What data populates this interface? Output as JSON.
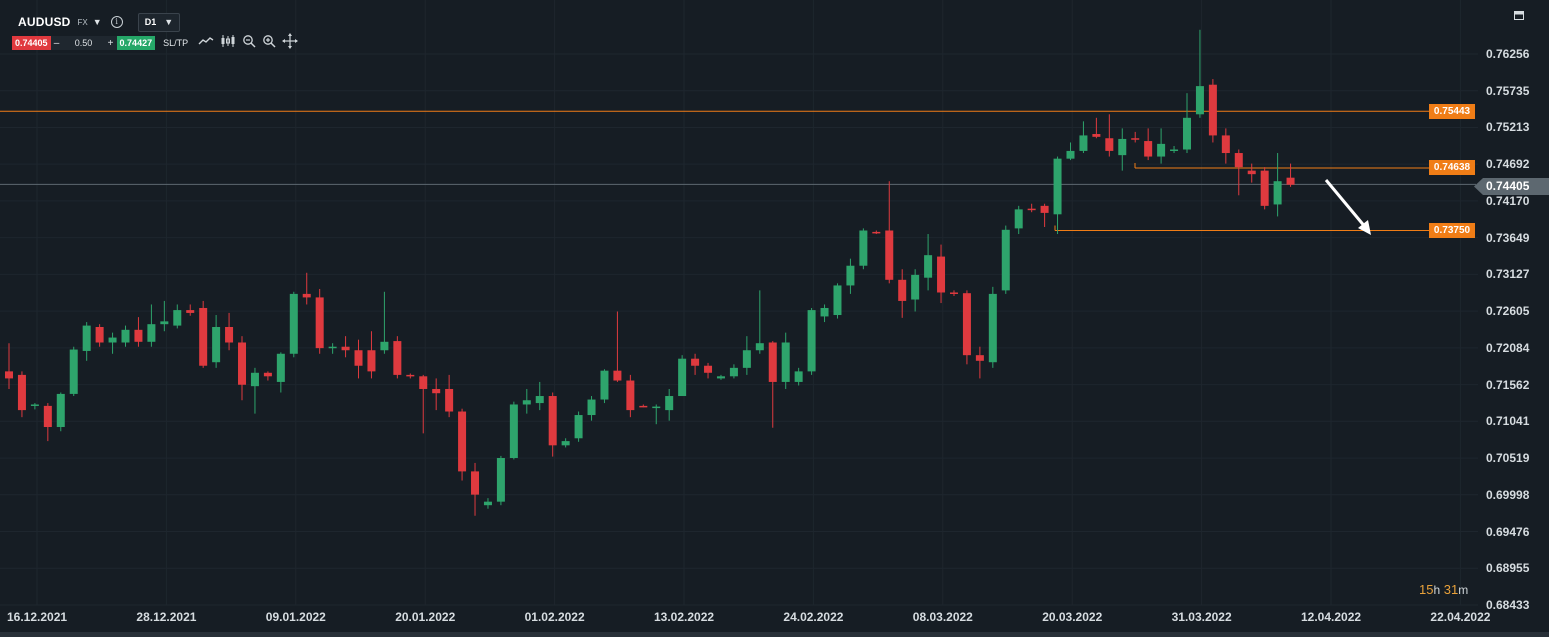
{
  "toolbar": {
    "symbol": "AUDUSD",
    "market": "FX",
    "timeframe": "D1",
    "sell_price": "0.74405",
    "minus": "–",
    "quantity": "0.50",
    "plus": "+",
    "buy_price": "0.74427",
    "sltp_label": "SL/TP",
    "tools": [
      "line-chart-icon",
      "candlestick-icon",
      "zoom-out-icon",
      "zoom-in-icon",
      "move-icon"
    ]
  },
  "colors": {
    "background": "#161d24",
    "bull": "#2ea46c",
    "bear": "#df3a3f",
    "level": "#f07d16",
    "current": "#5d6870"
  },
  "price_axis": [
    "0.76256",
    "0.75735",
    "0.75213",
    "0.74692",
    "0.74170",
    "0.73649",
    "0.73127",
    "0.72605",
    "0.72084",
    "0.71562",
    "0.71041",
    "0.70519",
    "0.69998",
    "0.69476",
    "0.68955",
    "0.68433"
  ],
  "current_price": "0.74405",
  "levels": [
    {
      "label": "0.75443",
      "price": 0.75443
    },
    {
      "label": "0.74638",
      "price": 0.74638
    },
    {
      "label": "0.73750",
      "price": 0.7375
    }
  ],
  "date_axis": [
    "16.12.2021",
    "28.12.2021",
    "09.01.2022",
    "20.01.2022",
    "01.02.2022",
    "13.02.2022",
    "24.02.2022",
    "08.03.2022",
    "20.03.2022",
    "31.03.2022",
    "12.04.2022",
    "22.04.2022"
  ],
  "countdown": {
    "hours": "15",
    "h": "h",
    "minutes": "31",
    "m": "m"
  },
  "chart_data": {
    "type": "candlestick",
    "symbol": "AUDUSD",
    "timeframe": "D1",
    "ylim": [
      0.68433,
      0.76256
    ],
    "candles": [
      {
        "o": 0.7175,
        "h": 0.7215,
        "l": 0.715,
        "c": 0.7165
      },
      {
        "o": 0.717,
        "h": 0.7175,
        "l": 0.711,
        "c": 0.712
      },
      {
        "o": 0.7126,
        "h": 0.713,
        "l": 0.7121,
        "c": 0.7128
      },
      {
        "o": 0.7126,
        "h": 0.713,
        "l": 0.7076,
        "c": 0.7096
      },
      {
        "o": 0.7096,
        "h": 0.7145,
        "l": 0.709,
        "c": 0.7143
      },
      {
        "o": 0.7143,
        "h": 0.721,
        "l": 0.714,
        "c": 0.7206
      },
      {
        "o": 0.7204,
        "h": 0.7245,
        "l": 0.719,
        "c": 0.724
      },
      {
        "o": 0.7238,
        "h": 0.7242,
        "l": 0.721,
        "c": 0.7216
      },
      {
        "o": 0.7216,
        "h": 0.723,
        "l": 0.72,
        "c": 0.7223
      },
      {
        "o": 0.7216,
        "h": 0.724,
        "l": 0.721,
        "c": 0.7234
      },
      {
        "o": 0.7234,
        "h": 0.7252,
        "l": 0.721,
        "c": 0.7217
      },
      {
        "o": 0.7217,
        "h": 0.727,
        "l": 0.721,
        "c": 0.7242
      },
      {
        "o": 0.7242,
        "h": 0.7275,
        "l": 0.7232,
        "c": 0.7246
      },
      {
        "o": 0.724,
        "h": 0.727,
        "l": 0.7236,
        "c": 0.7262
      },
      {
        "o": 0.7262,
        "h": 0.727,
        "l": 0.7254,
        "c": 0.7258
      },
      {
        "o": 0.7265,
        "h": 0.7275,
        "l": 0.718,
        "c": 0.7183
      },
      {
        "o": 0.7188,
        "h": 0.7255,
        "l": 0.718,
        "c": 0.7238
      },
      {
        "o": 0.7238,
        "h": 0.7258,
        "l": 0.7205,
        "c": 0.7216
      },
      {
        "o": 0.7216,
        "h": 0.7225,
        "l": 0.7134,
        "c": 0.7156
      },
      {
        "o": 0.7154,
        "h": 0.718,
        "l": 0.7115,
        "c": 0.7173
      },
      {
        "o": 0.7173,
        "h": 0.7175,
        "l": 0.7162,
        "c": 0.7168
      },
      {
        "o": 0.716,
        "h": 0.7202,
        "l": 0.7145,
        "c": 0.72
      },
      {
        "o": 0.72,
        "h": 0.7288,
        "l": 0.7195,
        "c": 0.7285
      },
      {
        "o": 0.7285,
        "h": 0.7315,
        "l": 0.727,
        "c": 0.728
      },
      {
        "o": 0.728,
        "h": 0.7292,
        "l": 0.72,
        "c": 0.7208
      },
      {
        "o": 0.7208,
        "h": 0.7215,
        "l": 0.72,
        "c": 0.721
      },
      {
        "o": 0.721,
        "h": 0.7225,
        "l": 0.7195,
        "c": 0.7205
      },
      {
        "o": 0.7205,
        "h": 0.722,
        "l": 0.7165,
        "c": 0.7183
      },
      {
        "o": 0.7205,
        "h": 0.7232,
        "l": 0.7165,
        "c": 0.7175
      },
      {
        "o": 0.7205,
        "h": 0.7288,
        "l": 0.72,
        "c": 0.7217
      },
      {
        "o": 0.7218,
        "h": 0.7225,
        "l": 0.7165,
        "c": 0.717
      },
      {
        "o": 0.717,
        "h": 0.7172,
        "l": 0.7165,
        "c": 0.7168
      },
      {
        "o": 0.7168,
        "h": 0.717,
        "l": 0.7087,
        "c": 0.715
      },
      {
        "o": 0.715,
        "h": 0.7165,
        "l": 0.712,
        "c": 0.7144
      },
      {
        "o": 0.715,
        "h": 0.717,
        "l": 0.711,
        "c": 0.7118
      },
      {
        "o": 0.7118,
        "h": 0.7122,
        "l": 0.702,
        "c": 0.7033
      },
      {
        "o": 0.7033,
        "h": 0.7045,
        "l": 0.697,
        "c": 0.7
      },
      {
        "o": 0.6985,
        "h": 0.6995,
        "l": 0.698,
        "c": 0.699
      },
      {
        "o": 0.699,
        "h": 0.7055,
        "l": 0.6985,
        "c": 0.7052
      },
      {
        "o": 0.7052,
        "h": 0.7132,
        "l": 0.705,
        "c": 0.7128
      },
      {
        "o": 0.7128,
        "h": 0.715,
        "l": 0.7115,
        "c": 0.7134
      },
      {
        "o": 0.713,
        "h": 0.716,
        "l": 0.712,
        "c": 0.714
      },
      {
        "o": 0.714,
        "h": 0.7145,
        "l": 0.7054,
        "c": 0.707
      },
      {
        "o": 0.707,
        "h": 0.708,
        "l": 0.7067,
        "c": 0.7076
      },
      {
        "o": 0.708,
        "h": 0.7118,
        "l": 0.7075,
        "c": 0.7113
      },
      {
        "o": 0.7113,
        "h": 0.714,
        "l": 0.7105,
        "c": 0.7135
      },
      {
        "o": 0.7135,
        "h": 0.7178,
        "l": 0.713,
        "c": 0.7176
      },
      {
        "o": 0.7176,
        "h": 0.726,
        "l": 0.716,
        "c": 0.7162
      },
      {
        "o": 0.7162,
        "h": 0.717,
        "l": 0.711,
        "c": 0.712
      },
      {
        "o": 0.7126,
        "h": 0.7128,
        "l": 0.7124,
        "c": 0.7125
      },
      {
        "o": 0.7125,
        "h": 0.7128,
        "l": 0.71,
        "c": 0.7125
      },
      {
        "o": 0.712,
        "h": 0.715,
        "l": 0.7105,
        "c": 0.714
      },
      {
        "o": 0.714,
        "h": 0.7198,
        "l": 0.714,
        "c": 0.7193
      },
      {
        "o": 0.7193,
        "h": 0.72,
        "l": 0.717,
        "c": 0.7183
      },
      {
        "o": 0.7183,
        "h": 0.7187,
        "l": 0.7165,
        "c": 0.7173
      },
      {
        "o": 0.7165,
        "h": 0.717,
        "l": 0.7163,
        "c": 0.7168
      },
      {
        "o": 0.7168,
        "h": 0.7185,
        "l": 0.7165,
        "c": 0.718
      },
      {
        "o": 0.718,
        "h": 0.7225,
        "l": 0.717,
        "c": 0.7205
      },
      {
        "o": 0.7205,
        "h": 0.729,
        "l": 0.72,
        "c": 0.7215
      },
      {
        "o": 0.7216,
        "h": 0.7218,
        "l": 0.7095,
        "c": 0.716
      },
      {
        "o": 0.716,
        "h": 0.723,
        "l": 0.715,
        "c": 0.7216
      },
      {
        "o": 0.716,
        "h": 0.718,
        "l": 0.7155,
        "c": 0.7175
      },
      {
        "o": 0.7175,
        "h": 0.7265,
        "l": 0.717,
        "c": 0.7262
      },
      {
        "o": 0.7253,
        "h": 0.727,
        "l": 0.7245,
        "c": 0.7265
      },
      {
        "o": 0.7255,
        "h": 0.73,
        "l": 0.725,
        "c": 0.7297
      },
      {
        "o": 0.7297,
        "h": 0.7335,
        "l": 0.7285,
        "c": 0.7325
      },
      {
        "o": 0.7325,
        "h": 0.7378,
        "l": 0.732,
        "c": 0.7375
      },
      {
        "o": 0.7373,
        "h": 0.7375,
        "l": 0.737,
        "c": 0.7371
      },
      {
        "o": 0.7375,
        "h": 0.7445,
        "l": 0.73,
        "c": 0.7305
      },
      {
        "o": 0.7305,
        "h": 0.732,
        "l": 0.7251,
        "c": 0.7275
      },
      {
        "o": 0.7277,
        "h": 0.732,
        "l": 0.726,
        "c": 0.7312
      },
      {
        "o": 0.7308,
        "h": 0.737,
        "l": 0.729,
        "c": 0.734
      },
      {
        "o": 0.7338,
        "h": 0.7355,
        "l": 0.7272,
        "c": 0.7287
      },
      {
        "o": 0.7287,
        "h": 0.729,
        "l": 0.7282,
        "c": 0.7286
      },
      {
        "o": 0.7286,
        "h": 0.729,
        "l": 0.7185,
        "c": 0.7198
      },
      {
        "o": 0.7198,
        "h": 0.721,
        "l": 0.7165,
        "c": 0.719
      },
      {
        "o": 0.7188,
        "h": 0.7295,
        "l": 0.718,
        "c": 0.7285
      },
      {
        "o": 0.729,
        "h": 0.7382,
        "l": 0.7285,
        "c": 0.7376
      },
      {
        "o": 0.7378,
        "h": 0.741,
        "l": 0.737,
        "c": 0.7405
      },
      {
        "o": 0.7406,
        "h": 0.7413,
        "l": 0.7401,
        "c": 0.7404
      },
      {
        "o": 0.741,
        "h": 0.7413,
        "l": 0.738,
        "c": 0.74
      },
      {
        "o": 0.7398,
        "h": 0.748,
        "l": 0.737,
        "c": 0.7477
      },
      {
        "o": 0.7477,
        "h": 0.75,
        "l": 0.7475,
        "c": 0.7488
      },
      {
        "o": 0.7488,
        "h": 0.753,
        "l": 0.7485,
        "c": 0.751
      },
      {
        "o": 0.7512,
        "h": 0.7535,
        "l": 0.7506,
        "c": 0.7508
      },
      {
        "o": 0.7506,
        "h": 0.754,
        "l": 0.748,
        "c": 0.7488
      },
      {
        "o": 0.7482,
        "h": 0.752,
        "l": 0.746,
        "c": 0.7505
      },
      {
        "o": 0.7506,
        "h": 0.7515,
        "l": 0.75,
        "c": 0.7505
      },
      {
        "o": 0.7502,
        "h": 0.752,
        "l": 0.7475,
        "c": 0.748
      },
      {
        "o": 0.748,
        "h": 0.752,
        "l": 0.747,
        "c": 0.7498
      },
      {
        "o": 0.7488,
        "h": 0.7495,
        "l": 0.7485,
        "c": 0.749
      },
      {
        "o": 0.749,
        "h": 0.757,
        "l": 0.7485,
        "c": 0.7535
      },
      {
        "o": 0.754,
        "h": 0.766,
        "l": 0.7535,
        "c": 0.758
      },
      {
        "o": 0.7582,
        "h": 0.759,
        "l": 0.75,
        "c": 0.751
      },
      {
        "o": 0.751,
        "h": 0.752,
        "l": 0.747,
        "c": 0.7485
      },
      {
        "o": 0.7485,
        "h": 0.749,
        "l": 0.7425,
        "c": 0.7465
      },
      {
        "o": 0.746,
        "h": 0.747,
        "l": 0.7443,
        "c": 0.7455
      },
      {
        "o": 0.746,
        "h": 0.7465,
        "l": 0.7405,
        "c": 0.741
      },
      {
        "o": 0.7412,
        "h": 0.7485,
        "l": 0.7395,
        "c": 0.7445
      },
      {
        "o": 0.745,
        "h": 0.747,
        "l": 0.7437,
        "c": 0.744
      }
    ]
  }
}
